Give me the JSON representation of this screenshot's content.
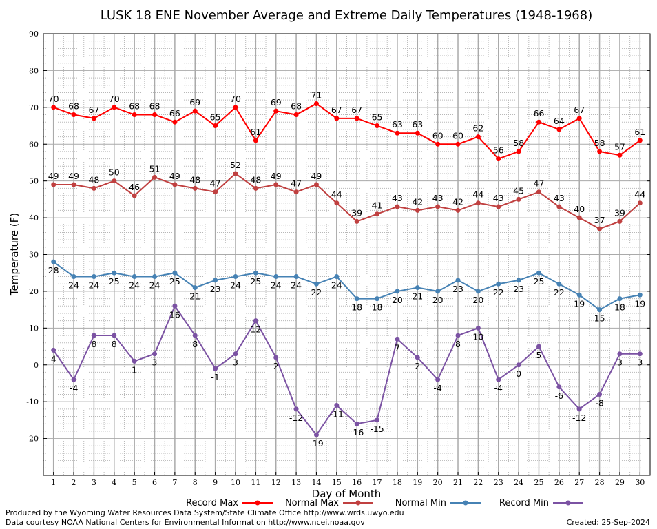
{
  "chart_data": {
    "type": "line",
    "title": "LUSK 18 ENE November Average and Extreme Daily Temperatures (1948-1968)",
    "xlabel": "Day of Month",
    "ylabel": "Temperature (F)",
    "x": [
      1,
      2,
      3,
      4,
      5,
      6,
      7,
      8,
      9,
      10,
      11,
      12,
      13,
      14,
      15,
      16,
      17,
      18,
      19,
      20,
      21,
      22,
      23,
      24,
      25,
      26,
      27,
      28,
      29,
      30
    ],
    "ylim": [
      -30,
      90
    ],
    "yticks": [
      -20,
      -10,
      0,
      10,
      20,
      30,
      40,
      50,
      60,
      70,
      80,
      90
    ],
    "grid": true,
    "series": [
      {
        "name": "Record Max",
        "color": "#ff0000",
        "label_pos": "above",
        "values": [
          70,
          68,
          67,
          70,
          68,
          68,
          66,
          69,
          65,
          70,
          61,
          69,
          68,
          71,
          67,
          67,
          65,
          63,
          63,
          60,
          60,
          62,
          56,
          58,
          66,
          64,
          67,
          58,
          57,
          61
        ]
      },
      {
        "name": "Normal Max",
        "color": "#c04040",
        "label_pos": "above",
        "values": [
          49,
          49,
          48,
          50,
          46,
          51,
          49,
          48,
          47,
          52,
          48,
          49,
          47,
          49,
          44,
          39,
          41,
          43,
          42,
          43,
          42,
          44,
          43,
          45,
          47,
          43,
          40,
          37,
          39,
          44
        ]
      },
      {
        "name": "Normal Min",
        "color": "#4682b4",
        "label_pos": "below",
        "values": [
          28,
          24,
          24,
          25,
          24,
          24,
          25,
          21,
          23,
          24,
          25,
          24,
          24,
          22,
          24,
          18,
          18,
          20,
          21,
          20,
          23,
          20,
          22,
          23,
          25,
          22,
          19,
          15,
          18,
          19
        ]
      },
      {
        "name": "Record Min",
        "color": "#7b52a3",
        "label_pos": "below",
        "values": [
          4,
          -4,
          8,
          8,
          1,
          3,
          16,
          8,
          -1,
          3,
          12,
          2,
          -12,
          -19,
          -11,
          -16,
          -15,
          7,
          2,
          -4,
          8,
          10,
          -4,
          0,
          5,
          -6,
          -12,
          -8,
          3,
          3
        ]
      }
    ]
  },
  "footer": {
    "line1": "Produced by the Wyoming Water Resources Data System/State Climate Office http://www.wrds.uwyo.edu",
    "line2": "Data courtesy NOAA National Centers for Environmental Information http://www.ncei.noaa.gov",
    "created": "Created:  25-Sep-2024"
  }
}
